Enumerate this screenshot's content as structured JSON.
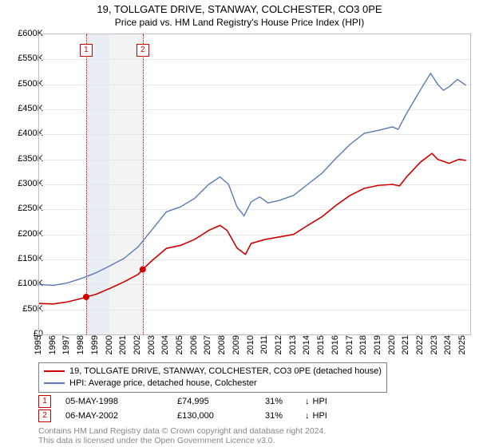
{
  "title": "19, TOLLGATE DRIVE, STANWAY, COLCHESTER, CO3 0PE",
  "subtitle": "Price paid vs. HM Land Registry's House Price Index (HPI)",
  "chart": {
    "type": "line",
    "x_years": [
      1995,
      1996,
      1997,
      1998,
      1999,
      2000,
      2001,
      2002,
      2003,
      2004,
      2005,
      2006,
      2007,
      2008,
      2009,
      2010,
      2011,
      2012,
      2013,
      2014,
      2015,
      2016,
      2017,
      2018,
      2019,
      2020,
      2021,
      2022,
      2023,
      2024,
      2025
    ],
    "xlim": [
      1995,
      2025.5
    ],
    "y_ticks": [
      0,
      50,
      100,
      150,
      200,
      250,
      300,
      350,
      400,
      450,
      500,
      550,
      600
    ],
    "y_tick_labels": [
      "£0",
      "£50K",
      "£100K",
      "£150K",
      "£200K",
      "£250K",
      "£300K",
      "£350K",
      "£400K",
      "£450K",
      "£500K",
      "£550K",
      "£600K"
    ],
    "ylim": [
      0,
      600
    ],
    "grid_color": "#e6e6e6",
    "border_color": "#bfbfbf",
    "band1": {
      "from": 1998.33,
      "to": 1999.99,
      "color": "#e9eef5"
    },
    "band2": {
      "from": 1999.99,
      "to": 2002.33,
      "color": "#f3f3f3"
    },
    "vline1": {
      "x": 1998.33,
      "color": "#cc0000"
    },
    "vline2": {
      "x": 2002.33,
      "color": "#cc0000"
    },
    "marker_label_1": "1",
    "marker_label_2": "2",
    "series_red": {
      "color": "#cc0000",
      "width": 1.6,
      "label": "19, TOLLGATE DRIVE, STANWAY, COLCHESTER, CO3 0PE (detached house)",
      "data": [
        [
          1995.0,
          62
        ],
        [
          1996.0,
          61
        ],
        [
          1997.0,
          65
        ],
        [
          1998.0,
          72
        ],
        [
          1998.33,
          74.995
        ],
        [
          1999.0,
          80
        ],
        [
          2000.0,
          92
        ],
        [
          2001.0,
          105
        ],
        [
          2002.0,
          120
        ],
        [
          2002.33,
          130
        ],
        [
          2003.0,
          148
        ],
        [
          2004.0,
          172
        ],
        [
          2005.0,
          178
        ],
        [
          2006.0,
          190
        ],
        [
          2007.0,
          208
        ],
        [
          2007.8,
          218
        ],
        [
          2008.3,
          208
        ],
        [
          2009.0,
          173
        ],
        [
          2009.6,
          160
        ],
        [
          2010.0,
          182
        ],
        [
          2011.0,
          190
        ],
        [
          2012.0,
          195
        ],
        [
          2013.0,
          200
        ],
        [
          2014.0,
          218
        ],
        [
          2015.0,
          235
        ],
        [
          2016.0,
          258
        ],
        [
          2017.0,
          278
        ],
        [
          2018.0,
          292
        ],
        [
          2019.0,
          298
        ],
        [
          2020.0,
          300
        ],
        [
          2020.5,
          297
        ],
        [
          2021.0,
          315
        ],
        [
          2022.0,
          345
        ],
        [
          2022.8,
          362
        ],
        [
          2023.2,
          350
        ],
        [
          2024.0,
          342
        ],
        [
          2024.7,
          350
        ],
        [
          2025.2,
          348
        ]
      ],
      "points": [
        {
          "x": 1998.33,
          "y": 74.995
        },
        {
          "x": 2002.33,
          "y": 130
        }
      ]
    },
    "series_blue": {
      "color": "#5b7ab5",
      "width": 1.4,
      "label": "HPI: Average price, detached house, Colchester",
      "data": [
        [
          1995.0,
          100
        ],
        [
          1996.0,
          98
        ],
        [
          1997.0,
          103
        ],
        [
          1998.0,
          112
        ],
        [
          1999.0,
          123
        ],
        [
          2000.0,
          137
        ],
        [
          2001.0,
          152
        ],
        [
          2002.0,
          175
        ],
        [
          2003.0,
          210
        ],
        [
          2004.0,
          245
        ],
        [
          2005.0,
          255
        ],
        [
          2006.0,
          272
        ],
        [
          2007.0,
          300
        ],
        [
          2007.8,
          315
        ],
        [
          2008.4,
          300
        ],
        [
          2009.0,
          255
        ],
        [
          2009.5,
          237
        ],
        [
          2010.0,
          265
        ],
        [
          2010.6,
          275
        ],
        [
          2011.2,
          263
        ],
        [
          2012.0,
          268
        ],
        [
          2013.0,
          278
        ],
        [
          2014.0,
          300
        ],
        [
          2015.0,
          322
        ],
        [
          2016.0,
          352
        ],
        [
          2017.0,
          380
        ],
        [
          2018.0,
          402
        ],
        [
          2019.0,
          408
        ],
        [
          2020.0,
          415
        ],
        [
          2020.4,
          410
        ],
        [
          2021.0,
          442
        ],
        [
          2022.0,
          490
        ],
        [
          2022.7,
          522
        ],
        [
          2023.2,
          500
        ],
        [
          2023.6,
          488
        ],
        [
          2024.0,
          495
        ],
        [
          2024.6,
          510
        ],
        [
          2025.2,
          498
        ]
      ]
    }
  },
  "transactions": [
    {
      "n": "1",
      "date": "05-MAY-1998",
      "price": "£74,995",
      "pct": "31%",
      "dir": "↓",
      "comp": "HPI"
    },
    {
      "n": "2",
      "date": "06-MAY-2002",
      "price": "£130,000",
      "pct": "31%",
      "dir": "↓",
      "comp": "HPI"
    }
  ],
  "footer_l1": "Contains HM Land Registry data © Crown copyright and database right 2024.",
  "footer_l2": "This data is licensed under the Open Government Licence v3.0."
}
